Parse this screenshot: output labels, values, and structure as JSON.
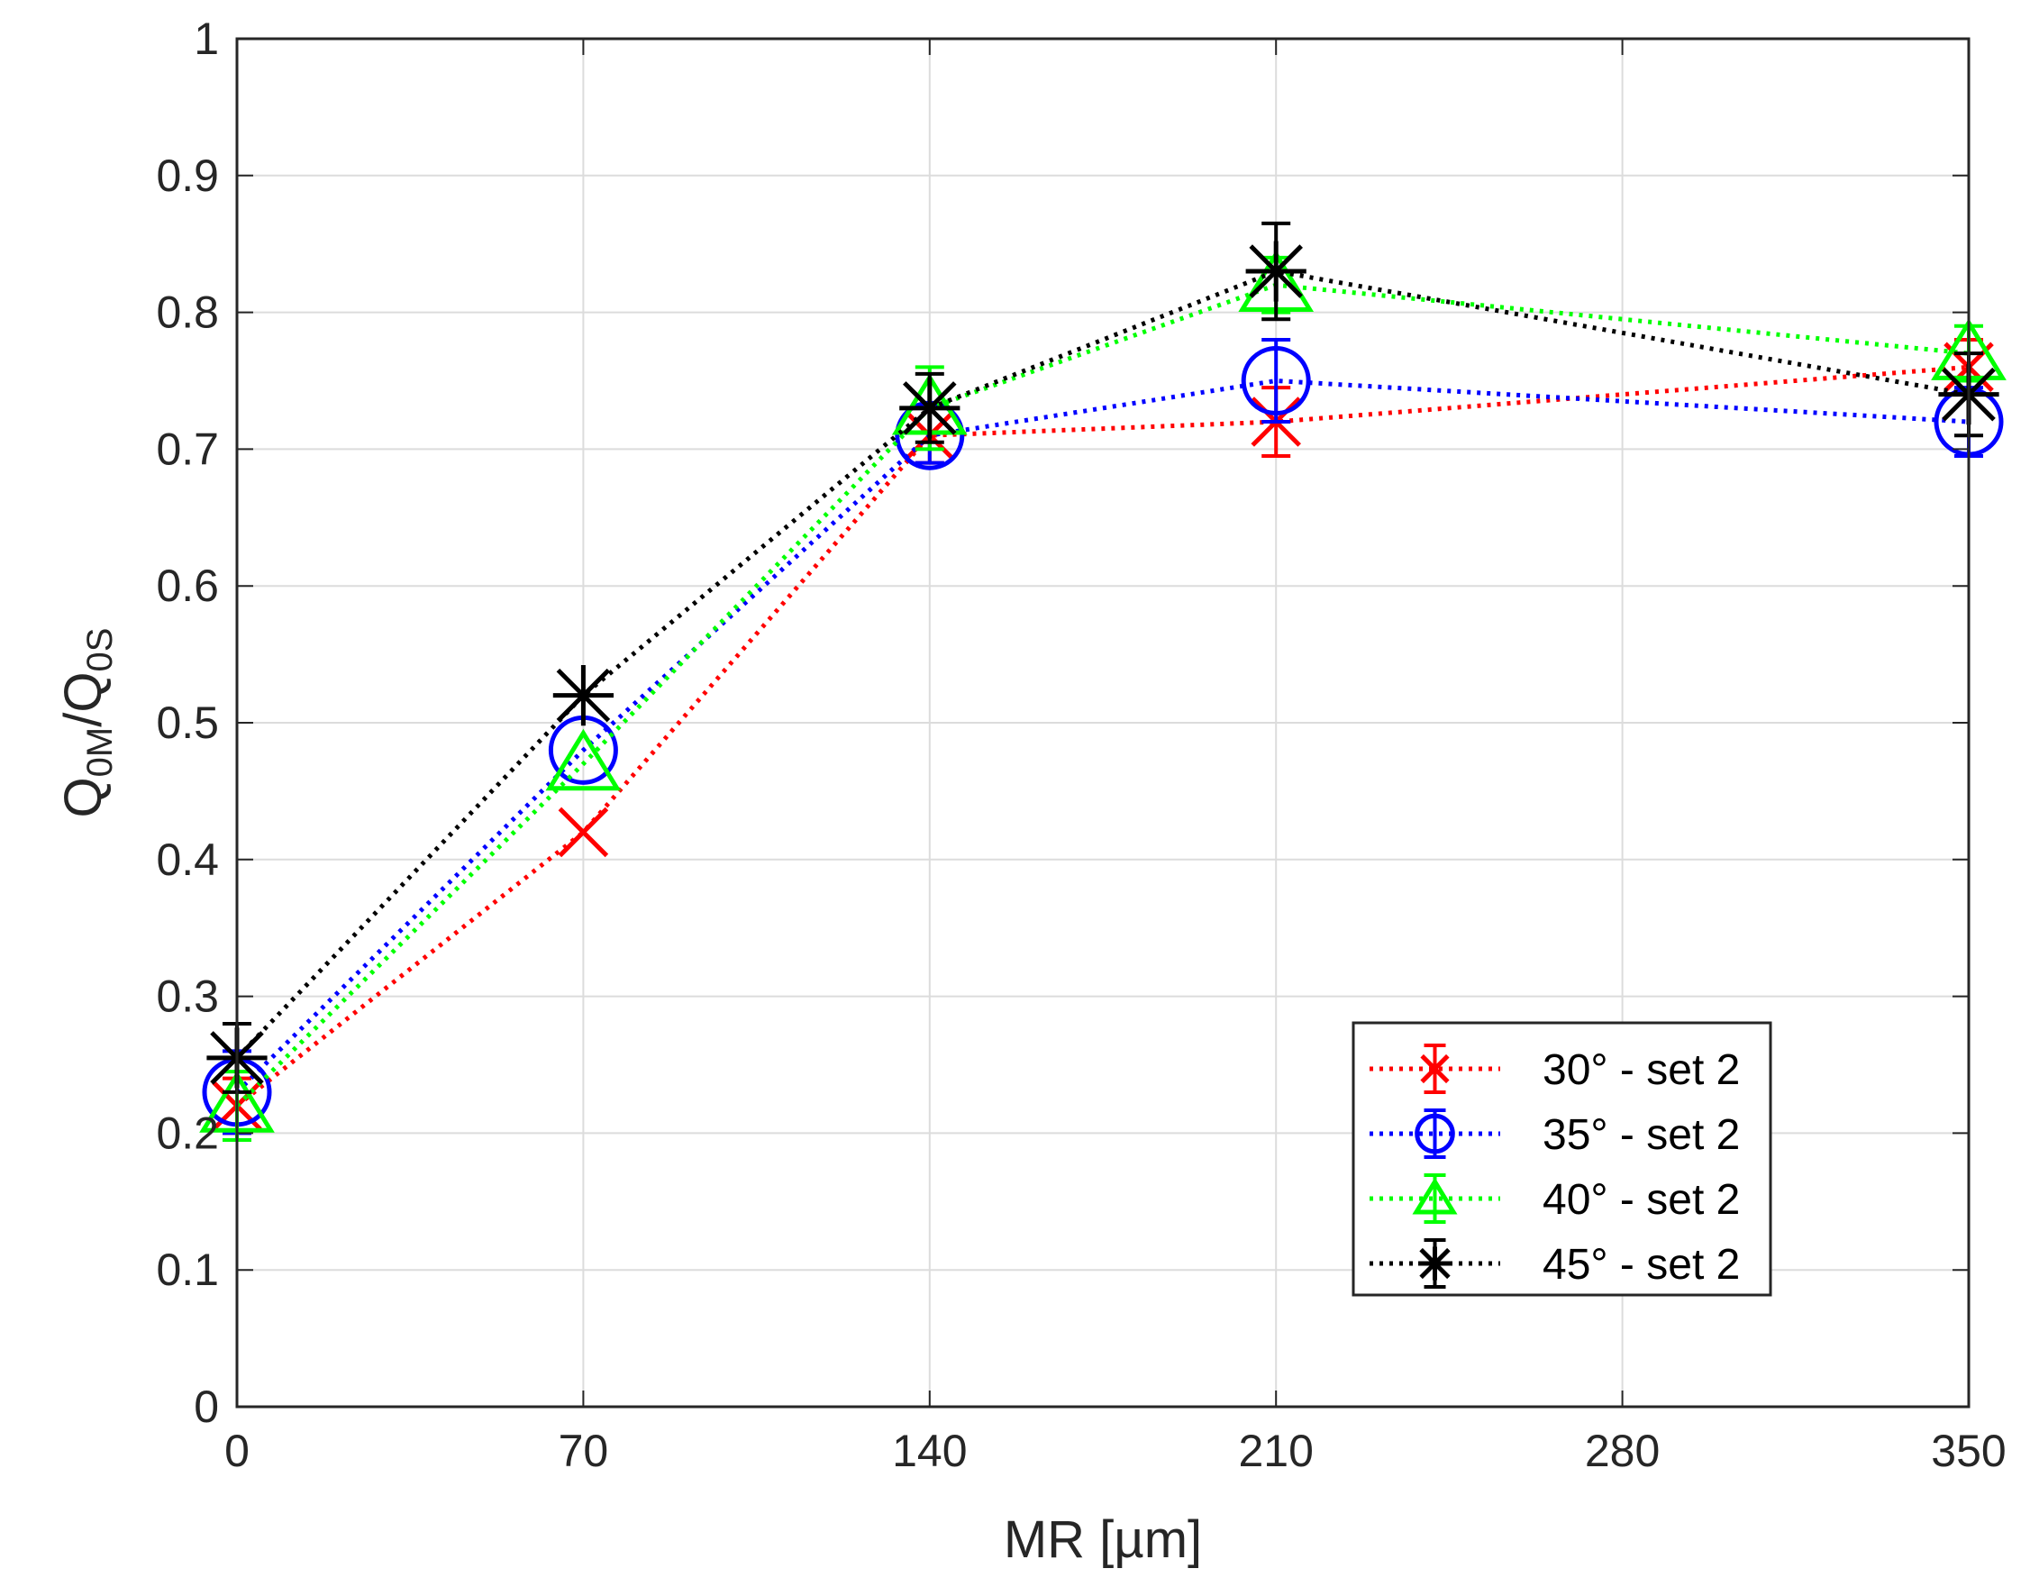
{
  "chart_data": {
    "type": "line",
    "title": "",
    "xlabel": "MR [µm]",
    "ylabel": {
      "base1": "Q",
      "sub1": "0M",
      "sep": "/",
      "base2": "Q",
      "sub2": "0S"
    },
    "x": [
      0,
      70,
      140,
      210,
      350
    ],
    "xticks": [
      0,
      70,
      140,
      210,
      280,
      350
    ],
    "xtick_labels": [
      "0",
      "70",
      "140",
      "210",
      "280",
      "350"
    ],
    "yticks": [
      0,
      0.1,
      0.2,
      0.3,
      0.4,
      0.5,
      0.6,
      0.7,
      0.8,
      0.9,
      1
    ],
    "ytick_labels": [
      "0",
      "0.1",
      "0.2",
      "0.3",
      "0.4",
      "0.5",
      "0.6",
      "0.7",
      "0.8",
      "0.9",
      "1"
    ],
    "xlim": [
      0,
      350
    ],
    "ylim": [
      0,
      1
    ],
    "grid": true,
    "legend_position": "lower-right",
    "series": [
      {
        "name": "30° - set 2",
        "color": "#ff0000",
        "marker": "x",
        "values": [
          0.22,
          0.42,
          0.71,
          0.72,
          0.76
        ],
        "errors": [
          0.02,
          0.0,
          0.02,
          0.025,
          0.02
        ]
      },
      {
        "name": "35° - set 2",
        "color": "#0000ff",
        "marker": "circle",
        "values": [
          0.23,
          0.48,
          0.71,
          0.75,
          0.72
        ],
        "errors": [
          0.03,
          0.0,
          0.02,
          0.03,
          0.025
        ]
      },
      {
        "name": "40° - set 2",
        "color": "#00ff00",
        "marker": "triangle",
        "values": [
          0.22,
          0.47,
          0.73,
          0.82,
          0.77
        ],
        "errors": [
          0.025,
          0.0,
          0.03,
          0.02,
          0.02
        ]
      },
      {
        "name": "45° - set 2",
        "color": "#000000",
        "marker": "star",
        "values": [
          0.255,
          0.52,
          0.73,
          0.83,
          0.74
        ],
        "errors": [
          0.025,
          0.0,
          0.025,
          0.035,
          0.03
        ]
      }
    ]
  }
}
